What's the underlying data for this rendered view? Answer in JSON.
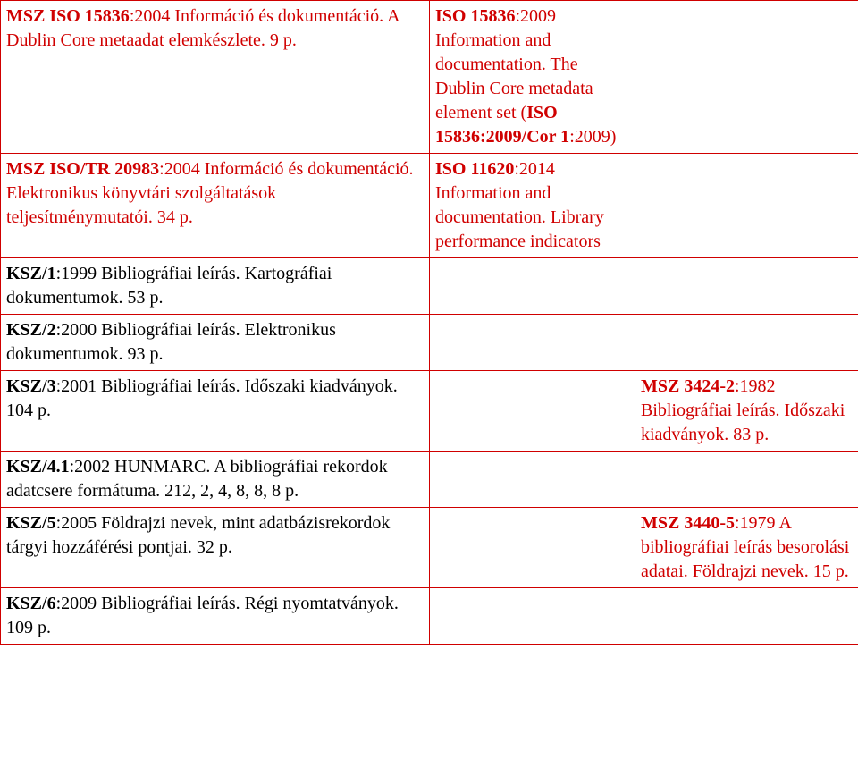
{
  "colors": {
    "text": "#000000",
    "border": "#d00000",
    "highlight": "#d00000",
    "background": "#ffffff"
  },
  "typography": {
    "font_family": "Times New Roman",
    "font_size_pt": 15
  },
  "rows": [
    {
      "c1": {
        "code": "MSZ ISO 15836",
        "rest": ":2004 Információ és dokumentáció. A Dublin Core metaadat elemkészlete. 9 p."
      },
      "c2": {
        "code": "ISO 15836",
        "mid": ":2009 Information and documentation. The Dublin Core metadata element set (",
        "code2": "ISO 15836:2009/Cor 1",
        "end": ":2009)"
      },
      "c3": null
    },
    {
      "c1": {
        "code": "MSZ ISO/TR 20983",
        "rest": ":2004 Információ és dokumentáció. Elektronikus könyvtári szolgáltatások teljesítménymutatói. 34 p."
      },
      "c2": {
        "code": "ISO 11620",
        "rest": ":2014 Information and documentation. Library performance indicators"
      },
      "c3": null
    },
    {
      "c1": {
        "code": "KSZ/1",
        "rest": ":1999 Bibliográfiai leírás. Kartográfiai dokumentumok. 53 p."
      },
      "c2": null,
      "c3": null
    },
    {
      "c1": {
        "code": "KSZ/2",
        "rest": ":2000 Bibliográfiai leírás. Elektronikus dokumentumok. 93 p."
      },
      "c2": null,
      "c3": null
    },
    {
      "c1": {
        "code": "KSZ/3",
        "rest": ":2001 Bibliográfiai leírás. Időszaki kiadványok. 104 p."
      },
      "c2": null,
      "c3": {
        "code": "MSZ 3424-2",
        "rest": ":1982 Bibliográfiai leírás. Időszaki kiadványok. 83 p."
      }
    },
    {
      "c1": {
        "code": "KSZ/4.1",
        "rest": ":2002 HUNMARC. A bibliográfiai rekordok adatcsere formátuma. 212, 2, 4, 8, 8, 8 p."
      },
      "c2": null,
      "c3": null
    },
    {
      "c1": {
        "code": "KSZ/5",
        "rest": ":2005 Földrajzi nevek, mint adatbázisrekordok tárgyi hozzáférési pontjai. 32 p."
      },
      "c2": null,
      "c3": {
        "code": "MSZ 3440-5",
        "rest": ":1979 A bibliográfiai leírás besorolási adatai. Földrajzi nevek. 15 p."
      }
    },
    {
      "c1": {
        "code": "KSZ/6",
        "rest": ":2009 Bibliográfiai leírás. Régi nyomtatványok. 109 p."
      },
      "c2": null,
      "c3": null
    }
  ]
}
